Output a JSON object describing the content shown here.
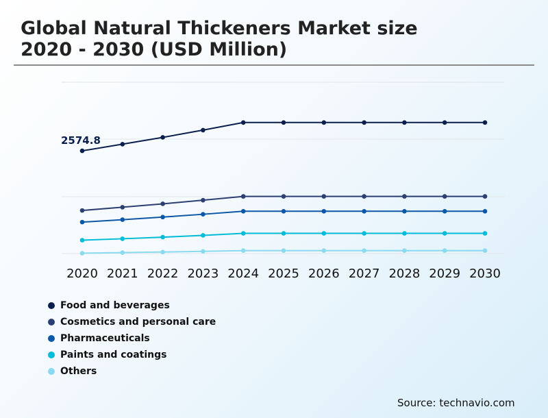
{
  "title_line1": "Global Natural Thickeners Market size",
  "title_line2": "2020 - 2030 (USD Million)",
  "source": "Source: technavio.com",
  "chart_data": {
    "type": "line",
    "title": "Global Natural Thickeners Market size 2020 - 2030 (USD Million)",
    "xlabel": "",
    "ylabel": "USD Million",
    "x": [
      "2020",
      "2021",
      "2022",
      "2023",
      "2024",
      "2025",
      "2026",
      "2027",
      "2028",
      "2029",
      "2030"
    ],
    "ylim": [
      0,
      4300
    ],
    "grid": true,
    "legend": "bottom-left",
    "annotations": [
      {
        "series": "Food and beverages",
        "x": "2020",
        "label": "2574.8"
      }
    ],
    "series": [
      {
        "name": "Food and beverages",
        "color": "#0b1f4d",
        "values": [
          2574.8,
          2740,
          2910,
          3090,
          3280,
          3280,
          3280,
          3280,
          3280,
          3280,
          3280
        ]
      },
      {
        "name": "Cosmetics and personal care",
        "color": "#2b3f73",
        "values": [
          1090,
          1170,
          1255,
          1345,
          1440,
          1440,
          1440,
          1440,
          1440,
          1440,
          1440
        ]
      },
      {
        "name": "Pharmaceuticals",
        "color": "#0d57a8",
        "values": [
          800,
          860,
          925,
          995,
          1070,
          1070,
          1070,
          1070,
          1070,
          1070,
          1070
        ]
      },
      {
        "name": "Paints and coatings",
        "color": "#00bcd8",
        "values": [
          350,
          385,
          425,
          470,
          520,
          520,
          520,
          520,
          520,
          520,
          520
        ]
      },
      {
        "name": "Others",
        "color": "#8adaf0",
        "values": [
          25,
          40,
          55,
          72,
          90,
          90,
          90,
          90,
          90,
          90,
          90
        ]
      }
    ]
  }
}
